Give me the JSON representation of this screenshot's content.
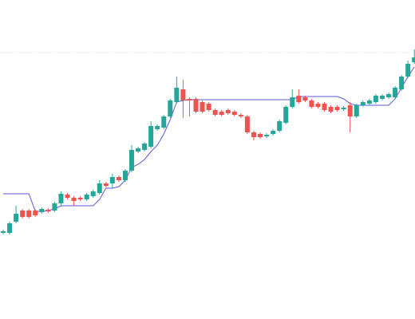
{
  "chart_data": {
    "type": "candlestick",
    "ylim": [
      0,
      400
    ],
    "up_color": "#26a69a",
    "down_color": "#ef5350",
    "hline": {
      "value": 334,
      "color": "#d9d9d9"
    },
    "open": [
      108,
      108,
      122,
      136,
      136,
      136,
      134,
      137,
      136,
      145,
      156,
      152,
      152,
      150,
      154,
      158,
      170,
      170,
      178,
      174,
      186,
      210,
      212,
      216,
      238,
      240,
      254,
      272,
      288,
      276,
      276,
      272,
      270,
      262,
      260,
      262,
      260,
      256,
      254,
      234,
      232,
      229,
      232,
      236,
      246,
      266,
      280,
      278,
      274,
      270,
      270,
      266,
      266,
      263,
      268,
      254,
      268,
      270,
      272,
      276,
      278,
      278,
      288,
      304,
      322
    ],
    "high": [
      112,
      122,
      142,
      138,
      138,
      138,
      140,
      139,
      147,
      160,
      158,
      154,
      154,
      158,
      162,
      174,
      172,
      182,
      180,
      188,
      218,
      216,
      222,
      248,
      244,
      256,
      276,
      304,
      300,
      278,
      278,
      274,
      272,
      264,
      262,
      264,
      262,
      258,
      256,
      236,
      234,
      233,
      238,
      250,
      268,
      288,
      288,
      280,
      276,
      272,
      272,
      268,
      268,
      267,
      272,
      270,
      274,
      276,
      282,
      282,
      284,
      292,
      306,
      324,
      338
    ],
    "low": [
      106,
      106,
      120,
      126,
      126,
      128,
      132,
      133,
      134,
      142,
      150,
      142,
      148,
      148,
      152,
      156,
      165,
      164,
      172,
      172,
      184,
      208,
      210,
      214,
      236,
      238,
      252,
      270,
      252,
      254,
      258,
      258,
      260,
      254,
      254,
      256,
      254,
      252,
      232,
      224,
      226,
      227,
      230,
      234,
      244,
      264,
      270,
      272,
      264,
      264,
      260,
      258,
      260,
      261,
      234,
      252,
      266,
      268,
      270,
      274,
      276,
      276,
      286,
      302,
      320
    ],
    "close": [
      110,
      120,
      132,
      128,
      128,
      130,
      138,
      135,
      145,
      157,
      152,
      148,
      150,
      156,
      160,
      170,
      167,
      178,
      174,
      186,
      212,
      214,
      220,
      242,
      242,
      254,
      274,
      290,
      274,
      274,
      260,
      260,
      262,
      256,
      256,
      258,
      256,
      254,
      234,
      228,
      228,
      231,
      236,
      248,
      266,
      278,
      272,
      274,
      266,
      266,
      262,
      260,
      262,
      265,
      254,
      268,
      272,
      274,
      280,
      280,
      282,
      290,
      304,
      320,
      328
    ],
    "line": {
      "color": "#5a5ad6",
      "values": [
        157,
        157,
        157,
        157,
        157,
        135,
        135,
        136,
        138,
        142,
        142,
        142,
        142,
        142,
        142,
        150,
        164,
        164,
        166,
        174,
        190,
        194,
        200,
        210,
        218,
        232,
        250,
        272,
        274,
        275,
        275,
        275,
        275,
        275,
        275,
        275,
        275,
        275,
        275,
        275,
        275,
        275,
        275,
        275,
        275,
        275,
        279,
        279,
        279,
        279,
        279,
        279,
        279,
        276,
        270,
        268,
        268,
        268,
        268,
        268,
        268,
        276,
        290,
        304,
        316
      ]
    }
  }
}
